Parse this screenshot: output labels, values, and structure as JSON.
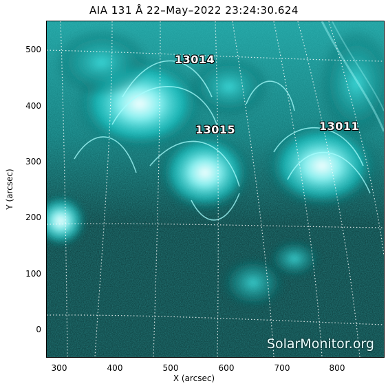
{
  "title": "AIA 131 Å 22–May–2022 23:24:30.624",
  "x_axis": {
    "label": "X (arcsec)",
    "ticks": [
      "300",
      "400",
      "500",
      "600",
      "700",
      "800"
    ]
  },
  "y_axis": {
    "label": "Y (arcsec)",
    "ticks": [
      "0",
      "100",
      "200",
      "300",
      "400",
      "500"
    ]
  },
  "active_regions": [
    {
      "id": "ar-13014",
      "label": "13014"
    },
    {
      "id": "ar-13015",
      "label": "13015"
    },
    {
      "id": "ar-13011",
      "label": "13011"
    }
  ],
  "watermark": "SolarMonitor.org",
  "colors": {
    "background": "#0a2b2b",
    "emission": "#00e5e5",
    "bright_core": "#e8ffff",
    "grid": "#ffffff"
  }
}
